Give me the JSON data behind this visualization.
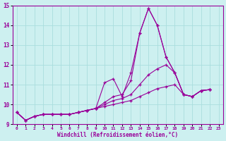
{
  "xlabel": "Windchill (Refroidissement éolien,°C)",
  "bg_color": "#cdf0f0",
  "line_color": "#990099",
  "grid_color": "#aadddd",
  "xlim": [
    -0.5,
    23.5
  ],
  "ylim": [
    9,
    15
  ],
  "yticks": [
    9,
    10,
    11,
    12,
    13,
    14,
    15
  ],
  "xticks": [
    0,
    1,
    2,
    3,
    4,
    5,
    6,
    7,
    8,
    9,
    10,
    11,
    12,
    13,
    14,
    15,
    16,
    17,
    18,
    19,
    20,
    21,
    22,
    23
  ],
  "series": [
    [
      9.6,
      9.2,
      9.4,
      9.5,
      9.5,
      9.5,
      9.5,
      9.6,
      9.7,
      9.8,
      11.1,
      11.3,
      10.4,
      11.6,
      13.6,
      14.85,
      14.0,
      12.4,
      11.6,
      10.5,
      10.4,
      10.7,
      10.75
    ],
    [
      9.6,
      9.2,
      9.4,
      9.5,
      9.5,
      9.5,
      9.5,
      9.6,
      9.7,
      9.8,
      10.1,
      10.4,
      10.5,
      11.2,
      13.6,
      14.85,
      14.0,
      12.4,
      11.6,
      10.5,
      10.4,
      10.7,
      10.75
    ],
    [
      9.6,
      9.2,
      9.4,
      9.5,
      9.5,
      9.5,
      9.5,
      9.6,
      9.7,
      9.8,
      10.0,
      10.2,
      10.3,
      10.5,
      11.0,
      11.5,
      11.8,
      12.0,
      11.6,
      10.5,
      10.4,
      10.7,
      10.75
    ],
    [
      9.6,
      9.2,
      9.4,
      9.5,
      9.5,
      9.5,
      9.5,
      9.6,
      9.7,
      9.8,
      9.9,
      10.0,
      10.1,
      10.2,
      10.4,
      10.6,
      10.8,
      10.9,
      11.0,
      10.5,
      10.4,
      10.7,
      10.75
    ]
  ]
}
